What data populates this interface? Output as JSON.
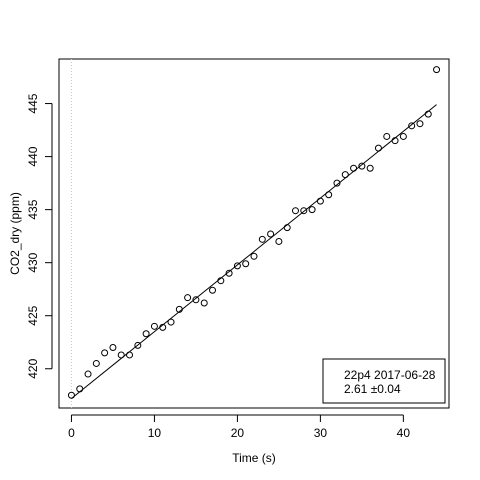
{
  "chart_data": {
    "type": "scatter",
    "xlabel": "Time (s)",
    "ylabel": "CO2_dry (ppm)",
    "xlim": [
      -1.5,
      45.5
    ],
    "ylim": [
      416.3,
      449.2
    ],
    "x_ticks": [
      0,
      10,
      20,
      30,
      40
    ],
    "y_ticks": [
      420,
      425,
      430,
      435,
      440,
      445
    ],
    "grid": false,
    "legend_position": "bottom-right",
    "legend_lines": [
      "22p4 2017-06-28",
      "2.61 ±0.04"
    ],
    "points": [
      [
        0,
        417.5
      ],
      [
        1,
        418.1
      ],
      [
        2,
        419.5
      ],
      [
        3,
        420.5
      ],
      [
        4,
        421.5
      ],
      [
        5,
        422.0
      ],
      [
        6,
        421.3
      ],
      [
        7,
        421.3
      ],
      [
        8,
        422.2
      ],
      [
        9,
        423.3
      ],
      [
        10,
        424.0
      ],
      [
        11,
        423.9
      ],
      [
        12,
        424.4
      ],
      [
        13,
        425.6
      ],
      [
        14,
        426.7
      ],
      [
        15,
        426.5
      ],
      [
        16,
        426.2
      ],
      [
        17,
        427.4
      ],
      [
        18,
        428.3
      ],
      [
        19,
        429.0
      ],
      [
        20,
        429.7
      ],
      [
        21,
        429.9
      ],
      [
        22,
        430.6
      ],
      [
        23,
        432.2
      ],
      [
        24,
        432.7
      ],
      [
        25,
        432.0
      ],
      [
        26,
        433.3
      ],
      [
        27,
        434.9
      ],
      [
        28,
        434.9
      ],
      [
        29,
        435.0
      ],
      [
        30,
        435.8
      ],
      [
        31,
        436.4
      ],
      [
        32,
        437.5
      ],
      [
        33,
        438.3
      ],
      [
        34,
        438.9
      ],
      [
        35,
        439.1
      ],
      [
        36,
        438.9
      ],
      [
        37,
        440.8
      ],
      [
        38,
        441.9
      ],
      [
        39,
        441.5
      ],
      [
        40,
        441.9
      ],
      [
        41,
        442.9
      ],
      [
        42,
        443.1
      ],
      [
        43,
        444.0
      ],
      [
        44,
        448.2
      ]
    ],
    "fit_line": {
      "x": [
        0,
        44
      ],
      "y": [
        417.2,
        444.9
      ]
    },
    "vertical_reference_x": 0
  }
}
